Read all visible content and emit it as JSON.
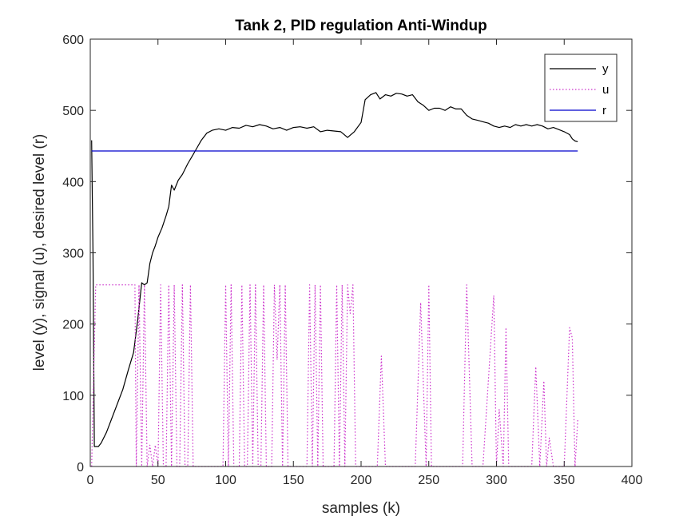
{
  "chart_data": {
    "type": "line",
    "title": "Tank 2, PID regulation Anti-Windup",
    "xlabel": "samples (k)",
    "ylabel": "level (y), signal (u), desired level (r)",
    "xlim": [
      0,
      400
    ],
    "ylim": [
      0,
      600
    ],
    "xticks": [
      "0",
      "50",
      "100",
      "150",
      "200",
      "250",
      "300",
      "350",
      "400"
    ],
    "yticks": [
      "0",
      "100",
      "200",
      "300",
      "400",
      "500",
      "600"
    ],
    "grid": false,
    "legend_position": "top-right",
    "series": [
      {
        "name": "y",
        "color": "#000000",
        "style": "solid",
        "points": [
          [
            1,
            458
          ],
          [
            2,
            300
          ],
          [
            3,
            28
          ],
          [
            6,
            28
          ],
          [
            8,
            33
          ],
          [
            12,
            48
          ],
          [
            16,
            68
          ],
          [
            20,
            88
          ],
          [
            24,
            108
          ],
          [
            28,
            135
          ],
          [
            32,
            160
          ],
          [
            35,
            205
          ],
          [
            38,
            258
          ],
          [
            40,
            255
          ],
          [
            42,
            258
          ],
          [
            44,
            285
          ],
          [
            46,
            300
          ],
          [
            48,
            310
          ],
          [
            50,
            322
          ],
          [
            53,
            335
          ],
          [
            56,
            352
          ],
          [
            58,
            365
          ],
          [
            60,
            395
          ],
          [
            62,
            388
          ],
          [
            65,
            402
          ],
          [
            68,
            410
          ],
          [
            72,
            425
          ],
          [
            76,
            438
          ],
          [
            79,
            448
          ],
          [
            82,
            458
          ],
          [
            86,
            468
          ],
          [
            90,
            472
          ],
          [
            95,
            474
          ],
          [
            100,
            472
          ],
          [
            105,
            476
          ],
          [
            110,
            475
          ],
          [
            115,
            479
          ],
          [
            120,
            477
          ],
          [
            125,
            480
          ],
          [
            130,
            478
          ],
          [
            135,
            474
          ],
          [
            140,
            476
          ],
          [
            145,
            472
          ],
          [
            150,
            476
          ],
          [
            155,
            477
          ],
          [
            160,
            475
          ],
          [
            165,
            477
          ],
          [
            170,
            470
          ],
          [
            175,
            472
          ],
          [
            180,
            471
          ],
          [
            185,
            470
          ],
          [
            190,
            462
          ],
          [
            195,
            470
          ],
          [
            200,
            483
          ],
          [
            203,
            515
          ],
          [
            207,
            522
          ],
          [
            211,
            525
          ],
          [
            214,
            516
          ],
          [
            218,
            522
          ],
          [
            222,
            520
          ],
          [
            226,
            524
          ],
          [
            230,
            523
          ],
          [
            234,
            520
          ],
          [
            238,
            522
          ],
          [
            242,
            512
          ],
          [
            246,
            507
          ],
          [
            250,
            500
          ],
          [
            254,
            503
          ],
          [
            258,
            503
          ],
          [
            262,
            500
          ],
          [
            266,
            505
          ],
          [
            270,
            502
          ],
          [
            274,
            502
          ],
          [
            278,
            493
          ],
          [
            282,
            488
          ],
          [
            286,
            486
          ],
          [
            290,
            484
          ],
          [
            294,
            482
          ],
          [
            298,
            478
          ],
          [
            302,
            476
          ],
          [
            306,
            478
          ],
          [
            310,
            476
          ],
          [
            314,
            480
          ],
          [
            318,
            478
          ],
          [
            322,
            480
          ],
          [
            326,
            478
          ],
          [
            330,
            480
          ],
          [
            334,
            478
          ],
          [
            338,
            474
          ],
          [
            342,
            476
          ],
          [
            346,
            473
          ],
          [
            350,
            470
          ],
          [
            354,
            466
          ],
          [
            356,
            460
          ],
          [
            358,
            457
          ],
          [
            360,
            456
          ]
        ]
      },
      {
        "name": "u",
        "color": "#cc33cc",
        "style": "dotted",
        "points": [
          [
            1,
            0
          ],
          [
            4,
            255
          ],
          [
            33,
            255
          ],
          [
            34,
            0
          ],
          [
            36,
            255
          ],
          [
            38,
            0
          ],
          [
            40,
            255
          ],
          [
            42,
            0
          ],
          [
            44,
            30
          ],
          [
            46,
            0
          ],
          [
            48,
            30
          ],
          [
            50,
            0
          ],
          [
            52,
            255
          ],
          [
            54,
            0
          ],
          [
            56,
            0
          ],
          [
            58,
            255
          ],
          [
            60,
            0
          ],
          [
            62,
            255
          ],
          [
            64,
            0
          ],
          [
            66,
            0
          ],
          [
            68,
            255
          ],
          [
            70,
            0
          ],
          [
            72,
            0
          ],
          [
            74,
            255
          ],
          [
            76,
            0
          ],
          [
            80,
            0
          ],
          [
            98,
            0
          ],
          [
            100,
            255
          ],
          [
            102,
            0
          ],
          [
            104,
            255
          ],
          [
            106,
            0
          ],
          [
            110,
            0
          ],
          [
            112,
            255
          ],
          [
            114,
            0
          ],
          [
            116,
            0
          ],
          [
            118,
            255
          ],
          [
            120,
            0
          ],
          [
            122,
            255
          ],
          [
            124,
            0
          ],
          [
            126,
            0
          ],
          [
            128,
            255
          ],
          [
            130,
            0
          ],
          [
            134,
            0
          ],
          [
            136,
            255
          ],
          [
            138,
            150
          ],
          [
            140,
            255
          ],
          [
            142,
            0
          ],
          [
            144,
            255
          ],
          [
            146,
            0
          ],
          [
            150,
            0
          ],
          [
            160,
            0
          ],
          [
            162,
            255
          ],
          [
            164,
            0
          ],
          [
            166,
            255
          ],
          [
            168,
            0
          ],
          [
            170,
            255
          ],
          [
            172,
            0
          ],
          [
            176,
            0
          ],
          [
            180,
            0
          ],
          [
            182,
            255
          ],
          [
            184,
            0
          ],
          [
            186,
            255
          ],
          [
            188,
            0
          ],
          [
            190,
            255
          ],
          [
            192,
            215
          ],
          [
            194,
            255
          ],
          [
            196,
            0
          ],
          [
            200,
            0
          ],
          [
            212,
            0
          ],
          [
            215,
            155
          ],
          [
            218,
            0
          ],
          [
            235,
            0
          ],
          [
            240,
            0
          ],
          [
            244,
            230
          ],
          [
            248,
            0
          ],
          [
            250,
            255
          ],
          [
            252,
            0
          ],
          [
            270,
            0
          ],
          [
            275,
            0
          ],
          [
            278,
            255
          ],
          [
            282,
            0
          ],
          [
            290,
            0
          ],
          [
            298,
            240
          ],
          [
            300,
            0
          ],
          [
            302,
            80
          ],
          [
            305,
            0
          ],
          [
            307,
            195
          ],
          [
            309,
            0
          ],
          [
            312,
            0
          ],
          [
            326,
            0
          ],
          [
            329,
            140
          ],
          [
            332,
            0
          ],
          [
            335,
            120
          ],
          [
            337,
            0
          ],
          [
            339,
            40
          ],
          [
            342,
            0
          ],
          [
            350,
            0
          ],
          [
            354,
            195
          ],
          [
            356,
            180
          ],
          [
            358,
            0
          ],
          [
            360,
            65
          ]
        ]
      },
      {
        "name": "r",
        "color": "#0000cc",
        "style": "solid",
        "points": [
          [
            1,
            443
          ],
          [
            360,
            443
          ]
        ]
      }
    ]
  }
}
